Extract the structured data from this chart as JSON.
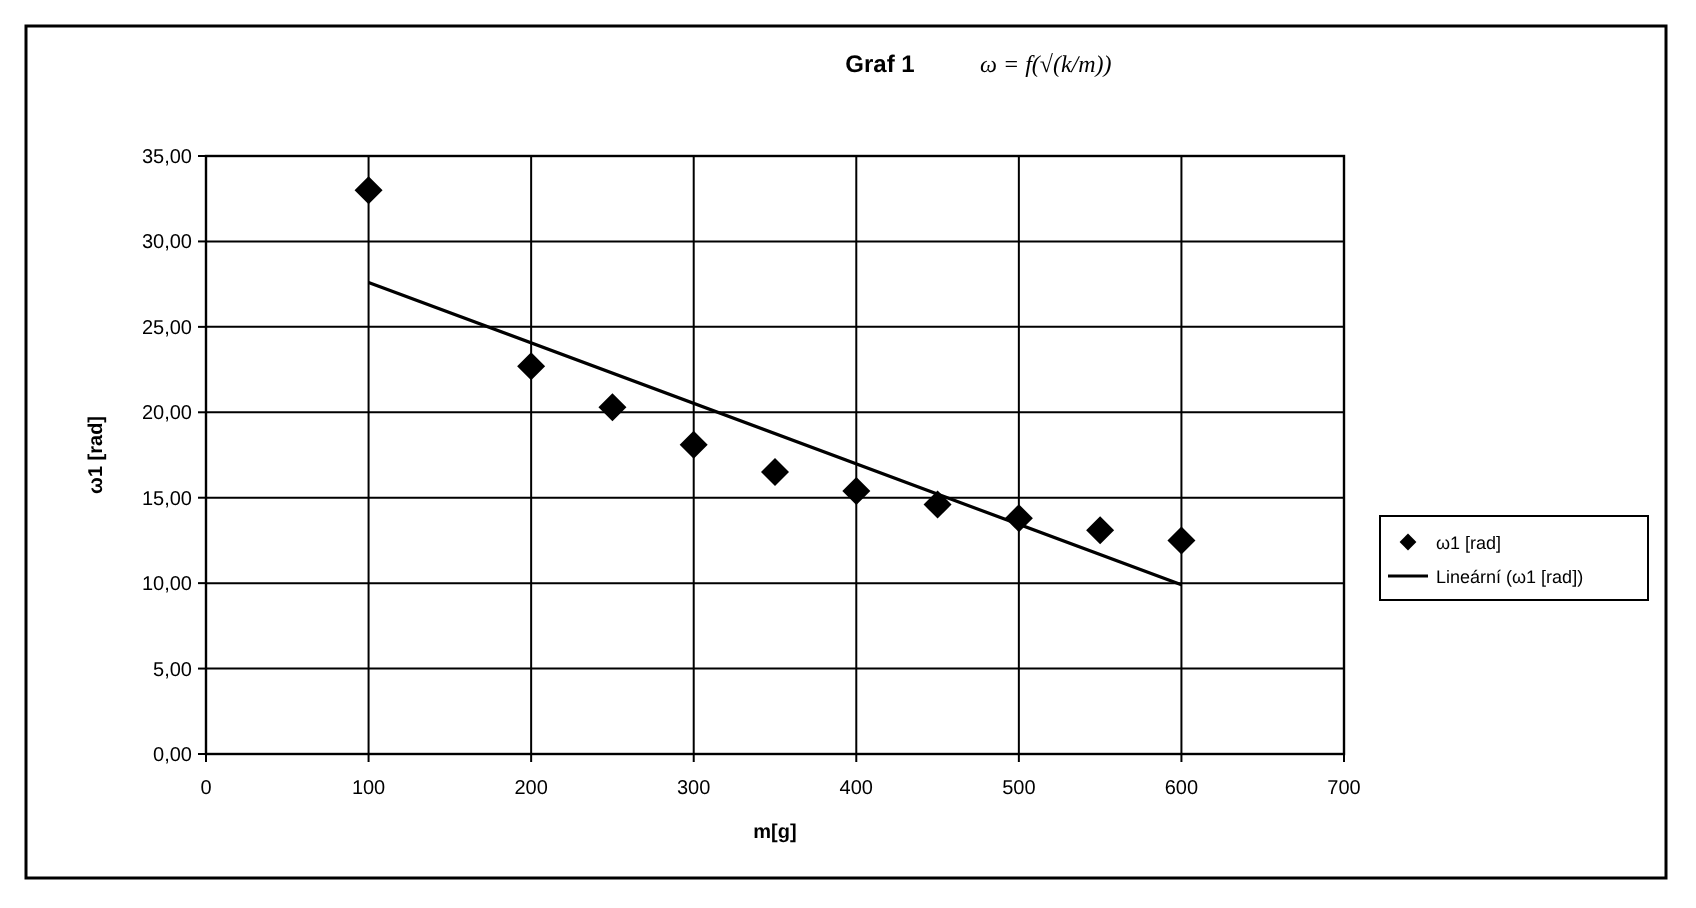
{
  "chart_data": {
    "type": "scatter",
    "title": "Graf 1",
    "annotations": [
      "ω = f(√(k/m))"
    ],
    "xlabel": "m[g]",
    "ylabel": "ω1 [rad]",
    "x": [
      100,
      200,
      250,
      300,
      350,
      400,
      450,
      500,
      550,
      600
    ],
    "series": [
      {
        "name": "ω1 [rad]",
        "color": "#000000",
        "marker": "diamond",
        "values": [
          33.0,
          22.7,
          20.3,
          18.1,
          16.5,
          15.4,
          14.6,
          13.8,
          13.1,
          12.5
        ]
      },
      {
        "name": "Lineární (ω1 [rad])",
        "type": "line",
        "color": "#000000",
        "marker": "none",
        "x": [
          100,
          600
        ],
        "values": [
          27.6,
          9.9
        ]
      }
    ],
    "xlim": [
      0,
      700
    ],
    "xticks": [
      0,
      100,
      200,
      300,
      400,
      500,
      600,
      700
    ],
    "ylim": [
      0,
      35
    ],
    "yticks": [
      {
        "value": 0,
        "label": "0,00"
      },
      {
        "value": 5,
        "label": "5,00"
      },
      {
        "value": 10,
        "label": "10,00"
      },
      {
        "value": 15,
        "label": "15,00"
      },
      {
        "value": 20,
        "label": "20,00"
      },
      {
        "value": 25,
        "label": "25,00"
      },
      {
        "value": 30,
        "label": "30,00"
      },
      {
        "value": 35,
        "label": "35,00"
      }
    ],
    "grid": true,
    "legend": "right"
  }
}
